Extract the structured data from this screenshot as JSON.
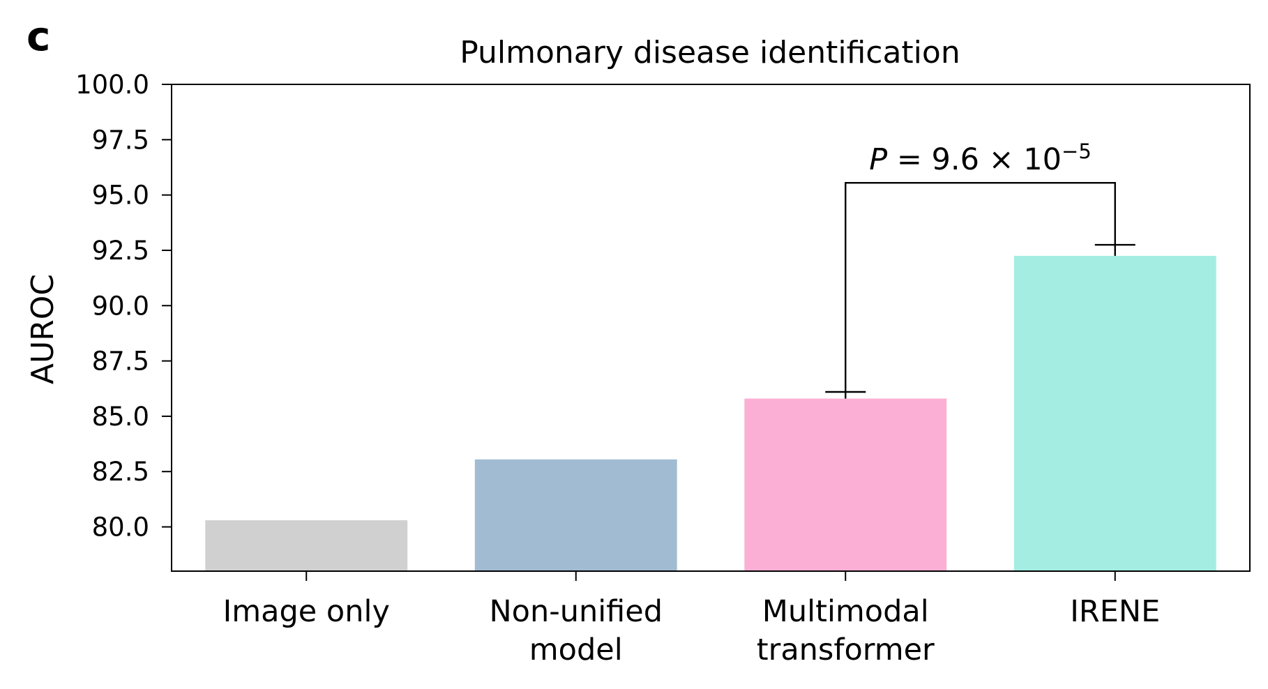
{
  "panel_label": "c",
  "chart_data": {
    "type": "bar",
    "title": "Pulmonary disease identification",
    "xlabel": "",
    "ylabel": "AUROC",
    "ylim": [
      78.0,
      100.0
    ],
    "yticks": [
      "80.0",
      "82.5",
      "85.0",
      "87.5",
      "90.0",
      "92.5",
      "95.0",
      "97.5",
      "100.0"
    ],
    "grid": false,
    "categories": [
      [
        "Image only"
      ],
      [
        "Non-unified",
        "model"
      ],
      [
        "Multimodal",
        "transformer"
      ],
      [
        "IRENE"
      ]
    ],
    "values": [
      80.3,
      83.05,
      85.8,
      92.25
    ],
    "error_upper": [
      null,
      null,
      86.1,
      92.75
    ],
    "colors": [
      "#d0d0d0",
      "#a1bbd3",
      "#fcafd4",
      "#a3ede2"
    ],
    "annotations": [
      {
        "type": "significance-bracket",
        "from_category": 2,
        "to_category": 3,
        "y": 95.55,
        "text_prefix": "P",
        "text_body": " = 9.6 × 10",
        "text_exponent": "−5"
      }
    ]
  }
}
